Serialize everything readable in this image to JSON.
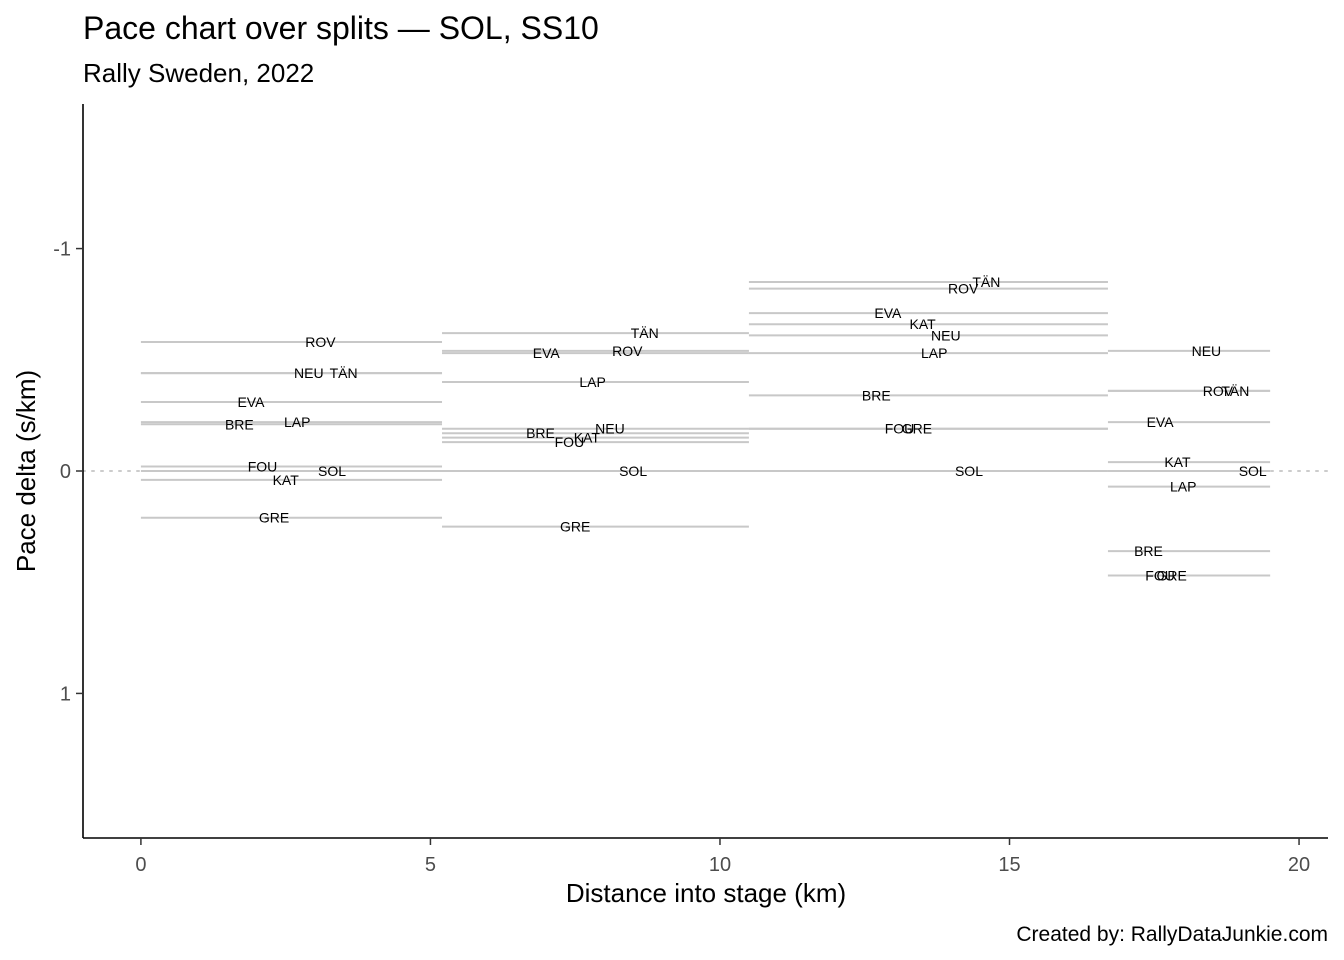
{
  "chart_data": {
    "type": "line",
    "title": "Pace chart over splits — SOL, SS10",
    "subtitle": "Rally Sweden, 2022",
    "xlabel": "Distance into stage (km)",
    "ylabel": "Pace delta (s/km)",
    "caption": "Created by: RallyDataJunkie.com",
    "xlim": [
      -1,
      20.5
    ],
    "ylim": [
      1.65,
      -1.65
    ],
    "y_reversed": true,
    "x_ticks": [
      0,
      5,
      10,
      15,
      20
    ],
    "x_tick_labels": [
      "0",
      "5",
      "10",
      "15",
      "20"
    ],
    "y_ticks": [
      -1,
      0,
      1
    ],
    "y_tick_labels": [
      "-1",
      "0",
      "1"
    ],
    "reference_line": {
      "y": 0,
      "style": "dotted"
    },
    "splits": [
      {
        "x_start": 0.0,
        "x_end": 5.2,
        "drivers": [
          {
            "code": "ROV",
            "pace": -0.58,
            "label_x": 3.1
          },
          {
            "code": "NEU",
            "pace": -0.44,
            "label_x": 2.9
          },
          {
            "code": "TÄN",
            "pace": -0.44,
            "label_x": 3.5
          },
          {
            "code": "EVA",
            "pace": -0.31,
            "label_x": 1.9
          },
          {
            "code": "LAP",
            "pace": -0.22,
            "label_x": 2.7
          },
          {
            "code": "BRE",
            "pace": -0.21,
            "label_x": 1.7
          },
          {
            "code": "FOU",
            "pace": -0.02,
            "label_x": 2.1
          },
          {
            "code": "SOL",
            "pace": 0.0,
            "label_x": 3.3
          },
          {
            "code": "KAT",
            "pace": 0.04,
            "label_x": 2.5
          },
          {
            "code": "GRE",
            "pace": 0.21,
            "label_x": 2.3
          }
        ]
      },
      {
        "x_start": 5.2,
        "x_end": 10.5,
        "drivers": [
          {
            "code": "TÄN",
            "pace": -0.62,
            "label_x": 8.7
          },
          {
            "code": "ROV",
            "pace": -0.54,
            "label_x": 8.4
          },
          {
            "code": "EVA",
            "pace": -0.53,
            "label_x": 7.0
          },
          {
            "code": "LAP",
            "pace": -0.4,
            "label_x": 7.8
          },
          {
            "code": "NEU",
            "pace": -0.19,
            "label_x": 8.1
          },
          {
            "code": "BRE",
            "pace": -0.17,
            "label_x": 6.9
          },
          {
            "code": "KAT",
            "pace": -0.15,
            "label_x": 7.7
          },
          {
            "code": "FOU",
            "pace": -0.13,
            "label_x": 7.4
          },
          {
            "code": "SOL",
            "pace": 0.0,
            "label_x": 8.5
          },
          {
            "code": "GRE",
            "pace": 0.25,
            "label_x": 7.5
          }
        ]
      },
      {
        "x_start": 10.5,
        "x_end": 16.7,
        "drivers": [
          {
            "code": "TÄN",
            "pace": -0.85,
            "label_x": 14.6
          },
          {
            "code": "ROV",
            "pace": -0.82,
            "label_x": 14.2
          },
          {
            "code": "EVA",
            "pace": -0.71,
            "label_x": 12.9
          },
          {
            "code": "KAT",
            "pace": -0.66,
            "label_x": 13.5
          },
          {
            "code": "NEU",
            "pace": -0.61,
            "label_x": 13.9
          },
          {
            "code": "LAP",
            "pace": -0.53,
            "label_x": 13.7
          },
          {
            "code": "BRE",
            "pace": -0.34,
            "label_x": 12.7
          },
          {
            "code": "FOU",
            "pace": -0.19,
            "label_x": 13.1
          },
          {
            "code": "GRE",
            "pace": -0.19,
            "label_x": 13.4
          },
          {
            "code": "SOL",
            "pace": 0.0,
            "label_x": 14.3
          }
        ]
      },
      {
        "x_start": 16.7,
        "x_end": 19.5,
        "drivers": [
          {
            "code": "NEU",
            "pace": -0.54,
            "label_x": 18.4
          },
          {
            "code": "ROV",
            "pace": -0.36,
            "label_x": 18.6
          },
          {
            "code": "TÄN",
            "pace": -0.36,
            "label_x": 18.9
          },
          {
            "code": "EVA",
            "pace": -0.22,
            "label_x": 17.6
          },
          {
            "code": "KAT",
            "pace": -0.04,
            "label_x": 17.9
          },
          {
            "code": "SOL",
            "pace": 0.0,
            "label_x": 19.2
          },
          {
            "code": "LAP",
            "pace": 0.07,
            "label_x": 18.0
          },
          {
            "code": "BRE",
            "pace": 0.36,
            "label_x": 17.4
          },
          {
            "code": "FOU",
            "pace": 0.47,
            "label_x": 17.6
          },
          {
            "code": "GRE",
            "pace": 0.47,
            "label_x": 17.8
          }
        ]
      }
    ]
  }
}
